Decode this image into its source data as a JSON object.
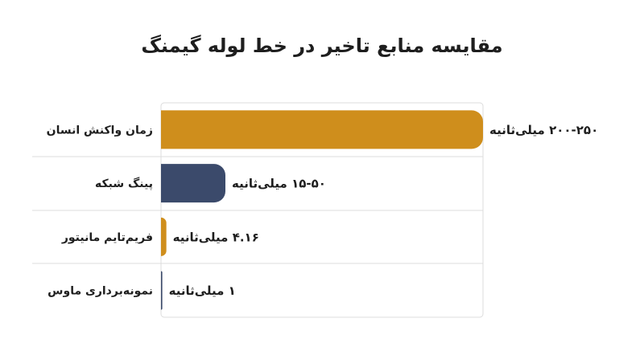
{
  "chart_data": {
    "type": "hbar",
    "title": "مقایسه منابع تاخیر در خط لوله گیمنگ",
    "categories": [
      "زمان واکنش انسان",
      "پینگ شبکه",
      "فریم‌تایم مانیتور",
      "نمونه‌برداری ماوس"
    ],
    "values": [
      250,
      50,
      4.16,
      1
    ],
    "value_labels": [
      "۲۰۰-۲۵۰ میلی‌ثانیه",
      "۱۵-۵۰ میلی‌ثانیه",
      "۴.۱۶ میلی‌ثانیه",
      "۱ میلی‌ثانیه"
    ],
    "colors": [
      "#cf8e1c",
      "#3b4a6b",
      "#cf8e1c",
      "#3b4a6b"
    ],
    "xlim": [
      0,
      250
    ]
  }
}
